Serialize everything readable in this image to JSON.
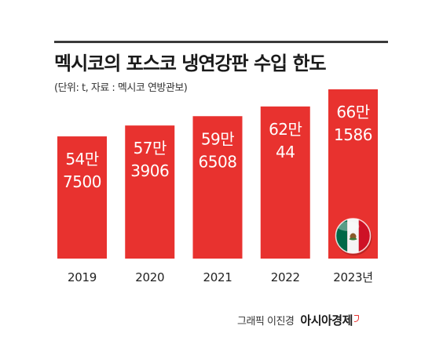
{
  "title": "멕시코의 포스코 냉연강판 수입 한도",
  "subtitle": "(단위: t, 자료 : 멕시코 연방관보)",
  "credit": {
    "label": "그래픽 이진경",
    "brand": "아시아경제"
  },
  "colors": {
    "bar": "#e8322f",
    "bar_text": "#ffffff",
    "axis_text": "#222222",
    "flag_green": "#006847",
    "flag_white": "#f5f5f5",
    "flag_red": "#ce1126"
  },
  "icons": {
    "flag": "mexico-flag-icon",
    "brand_mark": "brand-mark-icon"
  },
  "chart_data": {
    "type": "bar",
    "categories": [
      "2019",
      "2020",
      "2021",
      "2022",
      "2023년"
    ],
    "values": [
      547500,
      573906,
      596508,
      620044,
      661586
    ],
    "value_labels": [
      [
        "54만",
        "7500"
      ],
      [
        "57만",
        "3906"
      ],
      [
        "59만",
        "6508"
      ],
      [
        "62만",
        "44"
      ],
      [
        "66만",
        "1586"
      ]
    ],
    "unit": "t",
    "ylim": [
      0,
      661586
    ],
    "grid": false,
    "legend": "none",
    "annotations": [
      {
        "category": "2023년",
        "icon": "mexico-flag-icon"
      }
    ]
  }
}
